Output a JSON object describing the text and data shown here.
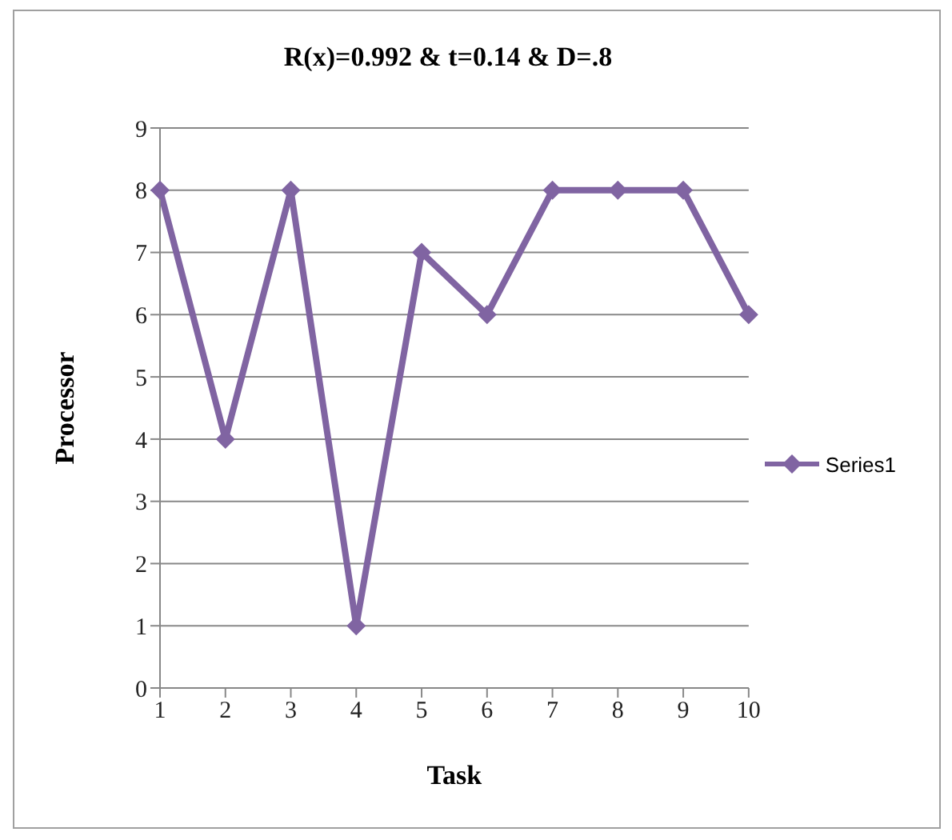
{
  "chart_data": {
    "type": "line",
    "title": "R(x)=0.992 & t=0.14 & D=.8",
    "xlabel": "Task",
    "ylabel": "Processor",
    "categories": [
      "1",
      "2",
      "3",
      "4",
      "5",
      "6",
      "7",
      "8",
      "9",
      "10"
    ],
    "series": [
      {
        "name": "Series1",
        "color": "#8064a2",
        "values": [
          8,
          4,
          8,
          1,
          7,
          6,
          8,
          8,
          8,
          6
        ]
      }
    ],
    "ylim": [
      0,
      9
    ],
    "yticks": [
      0,
      1,
      2,
      3,
      4,
      5,
      6,
      7,
      8,
      9
    ],
    "grid": "y",
    "legend": "right",
    "marker": "diamond",
    "line_style": "solid"
  }
}
